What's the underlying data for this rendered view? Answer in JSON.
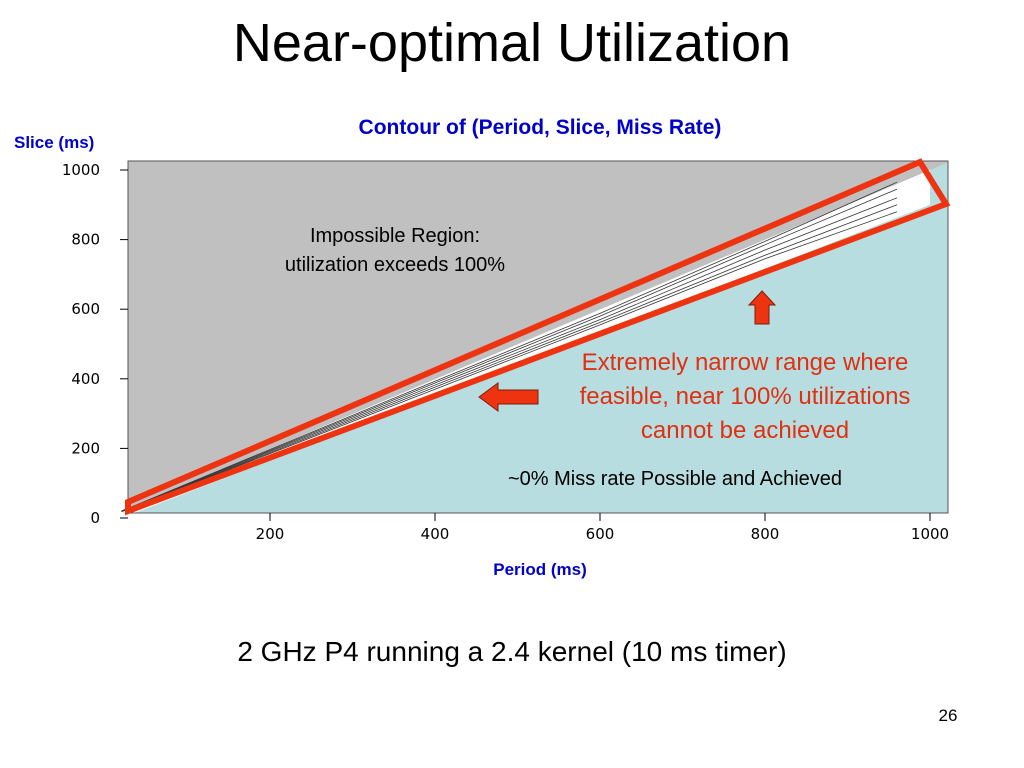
{
  "slide": {
    "title": "Near-optimal Utilization",
    "caption": "2 GHz P4 running a 2.4 kernel (10 ms timer)",
    "page_number": "26"
  },
  "annotations": {
    "impossible_line1": "Impossible Region:",
    "impossible_line2": "utilization exceeds 100%",
    "narrow_line1": "Extremely narrow range where",
    "narrow_line2": "feasible, near 100% utilizations",
    "narrow_line3": "cannot be achieved",
    "miss_rate": "~0% Miss rate Possible and Achieved"
  },
  "chart_data": {
    "type": "heatmap",
    "title": "Contour of (Period, Slice, Miss Rate)",
    "xlabel": "Period (ms)",
    "ylabel": "Slice (ms)",
    "xlim": [
      0,
      1000
    ],
    "ylim": [
      0,
      1000
    ],
    "x_ticks": [
      200,
      400,
      600,
      800,
      1000
    ],
    "y_ticks": [
      0,
      200,
      400,
      600,
      800,
      1000
    ],
    "regions": [
      {
        "label": "Impossible Region",
        "color": "#c0c0c0"
      },
      {
        "label": "~0% Miss rate",
        "color": "#b7dde0"
      }
    ],
    "boundary_low": [
      [
        10,
        5
      ],
      [
        1000,
        900
      ]
    ],
    "boundary_high": [
      [
        10,
        10
      ],
      [
        1000,
        1000
      ]
    ],
    "contour_lines": [
      [
        [
          20,
          18
        ],
        [
          200,
          185
        ],
        [
          400,
          370
        ],
        [
          600,
          555
        ],
        [
          800,
          745
        ],
        [
          960,
          880
        ]
      ],
      [
        [
          20,
          19
        ],
        [
          200,
          188
        ],
        [
          400,
          376
        ],
        [
          600,
          562
        ],
        [
          800,
          755
        ],
        [
          960,
          900
        ]
      ],
      [
        [
          20,
          19
        ],
        [
          200,
          191
        ],
        [
          400,
          382
        ],
        [
          600,
          570
        ],
        [
          800,
          770
        ],
        [
          960,
          920
        ]
      ],
      [
        [
          20,
          20
        ],
        [
          200,
          194
        ],
        [
          400,
          388
        ],
        [
          600,
          580
        ],
        [
          800,
          785
        ],
        [
          960,
          945
        ]
      ],
      [
        [
          20,
          20
        ],
        [
          200,
          197
        ],
        [
          400,
          393
        ],
        [
          600,
          588
        ],
        [
          800,
          795
        ],
        [
          960,
          965
        ]
      ]
    ],
    "highlight_color": "#ee3311",
    "text_color": "#0000cc"
  }
}
